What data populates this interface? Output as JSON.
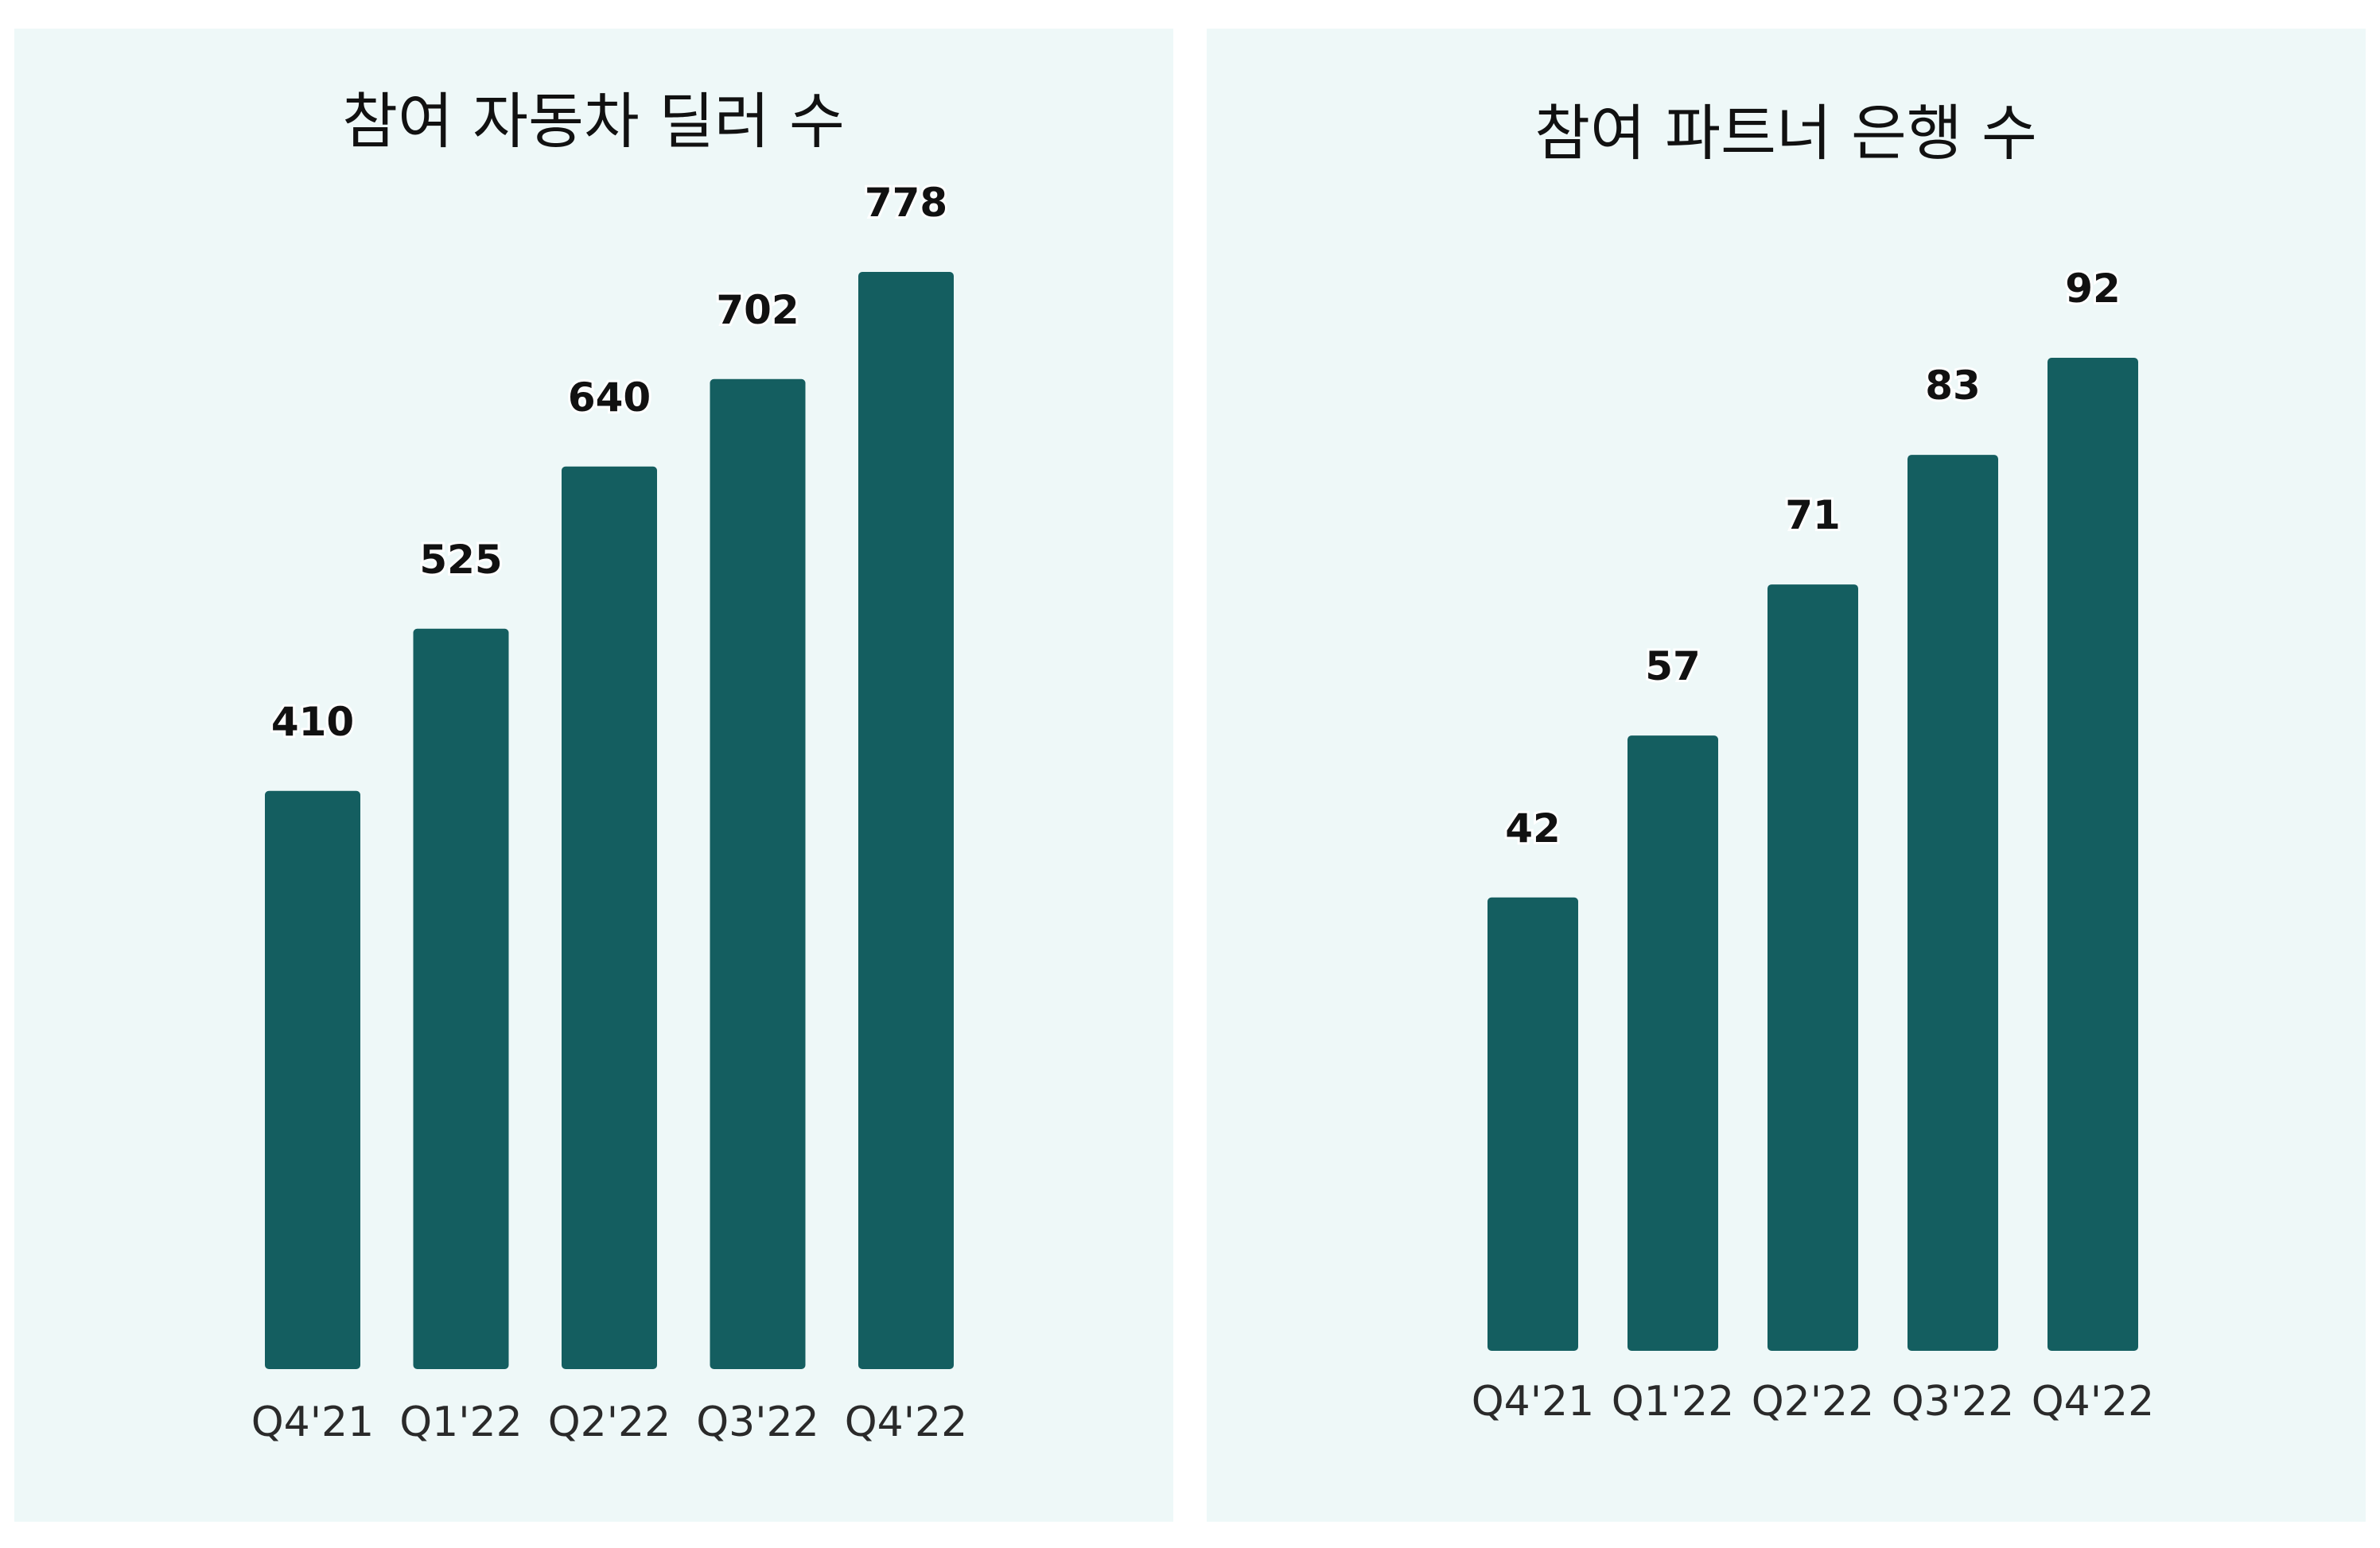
{
  "chart_data": [
    {
      "type": "bar",
      "title": "참여 자동차 딜러 수",
      "categories": [
        "Q4'21",
        "Q1'22",
        "Q2'22",
        "Q3'22",
        "Q4'22"
      ],
      "values": [
        410,
        525,
        640,
        702,
        778
      ],
      "xlabel": "",
      "ylabel": "",
      "ylim": [
        0,
        778
      ],
      "grid": false,
      "bar_color": "#145e60"
    },
    {
      "type": "bar",
      "title": "참여 파트너 은행 수",
      "categories": [
        "Q4'21",
        "Q1'22",
        "Q2'22",
        "Q3'22",
        "Q4'22"
      ],
      "values": [
        42,
        57,
        71,
        83,
        92
      ],
      "xlabel": "",
      "ylabel": "",
      "ylim": [
        0,
        92
      ],
      "grid": false,
      "bar_color": "#145e60"
    }
  ]
}
